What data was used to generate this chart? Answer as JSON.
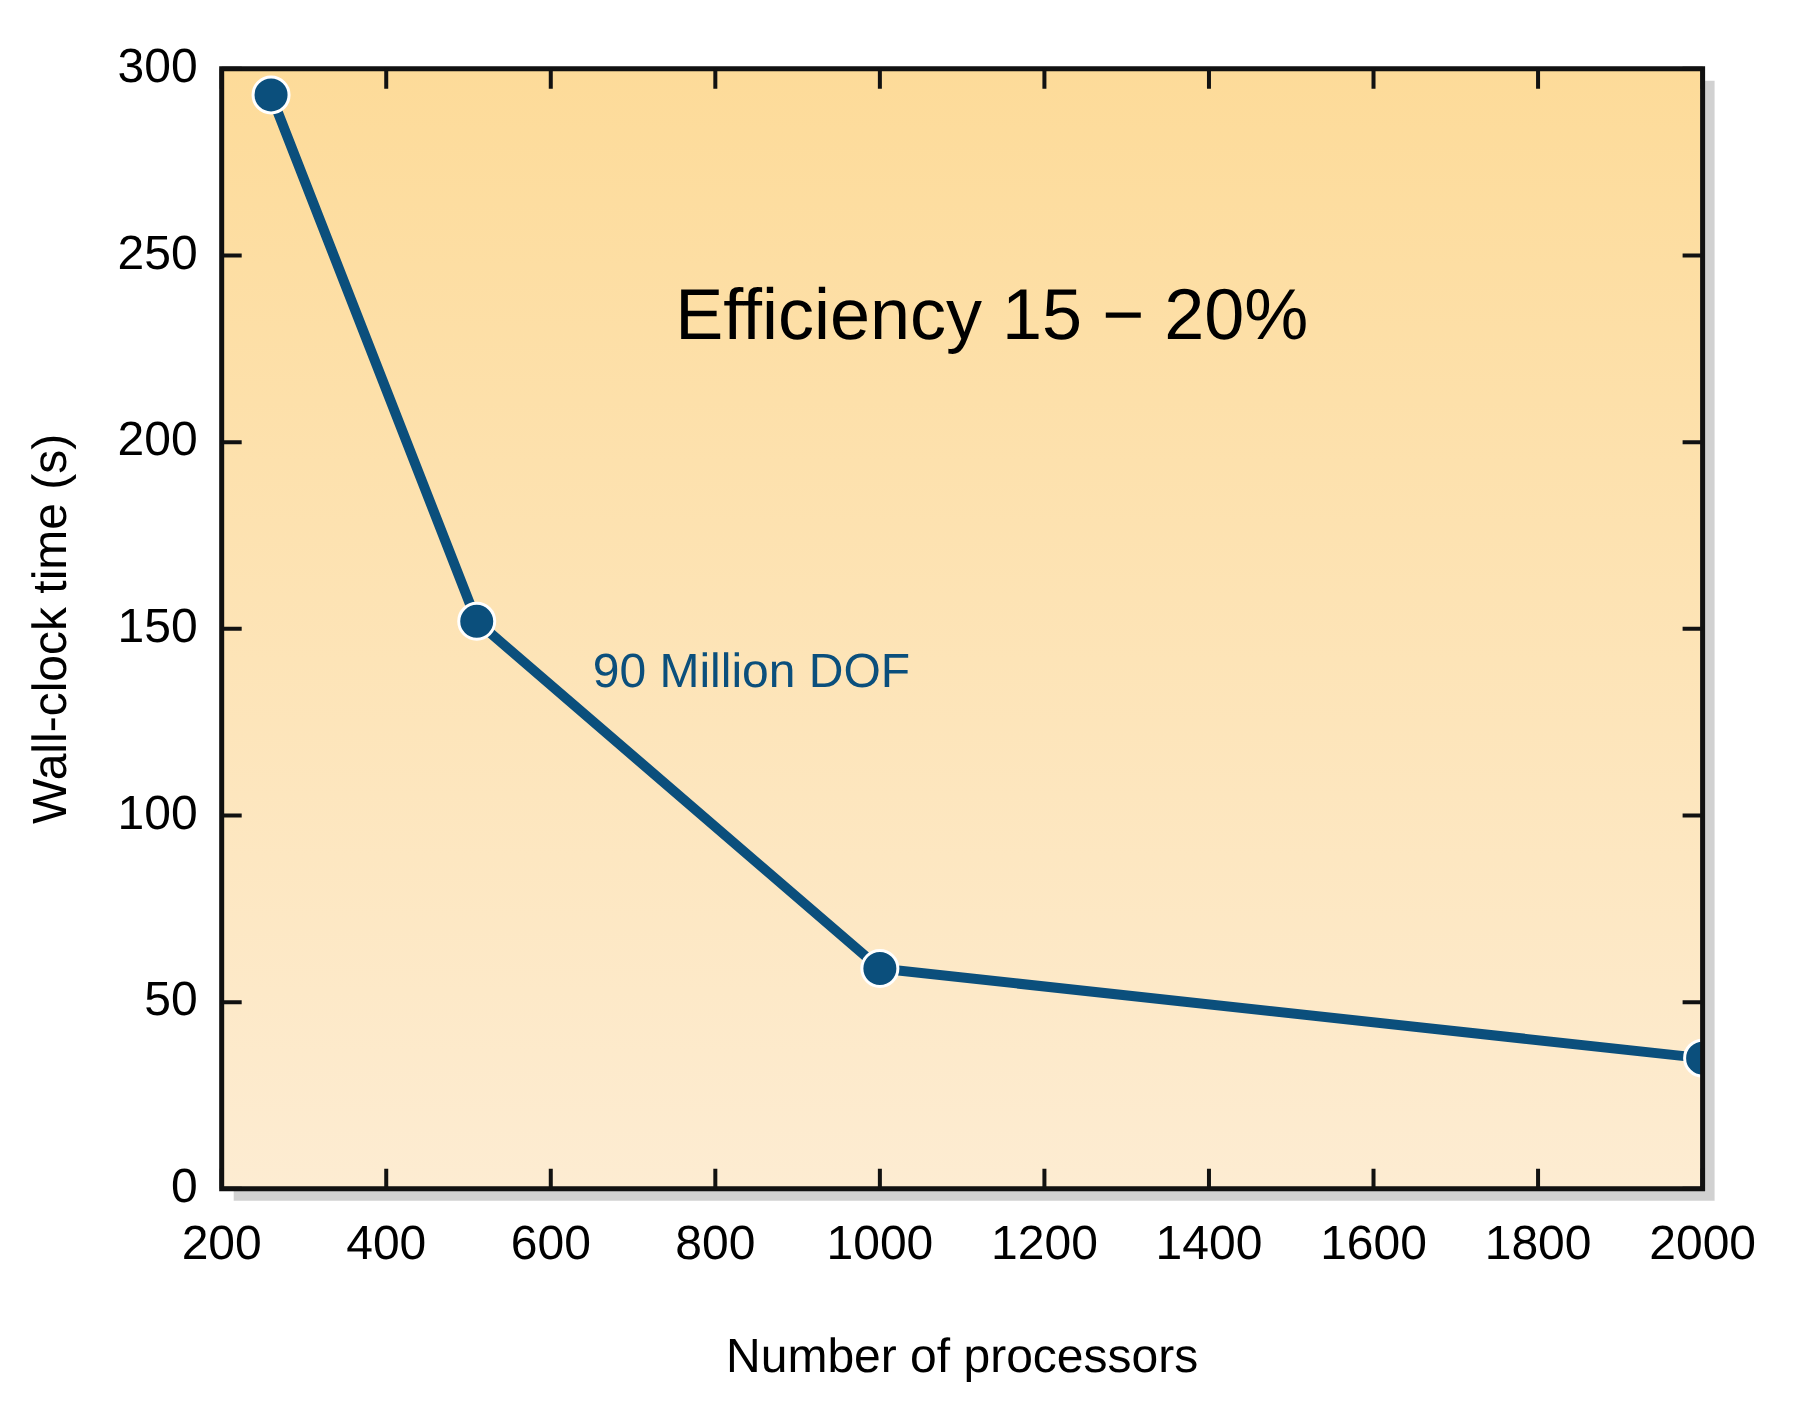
{
  "chart_data": {
    "type": "line",
    "xlabel": "Number of processors",
    "ylabel": "Wall-clock time (s)",
    "annotations": [
      "Efficiency 15 − 20%"
    ],
    "x": [
      260,
      510,
      1000,
      2000
    ],
    "series": [
      {
        "name": "90 Million DOF",
        "color": "#0b4f7c",
        "values": [
          293,
          152,
          59,
          35
        ]
      }
    ],
    "xlim": [
      200,
      2000
    ],
    "xticks": [
      200,
      400,
      600,
      800,
      1000,
      1200,
      1400,
      1600,
      1800,
      2000
    ],
    "ylim": [
      0,
      300
    ],
    "yticks": [
      0,
      50,
      100,
      150,
      200,
      250,
      300
    ],
    "grid": false,
    "legend": false,
    "marker": "circle",
    "line_style": "solid"
  }
}
